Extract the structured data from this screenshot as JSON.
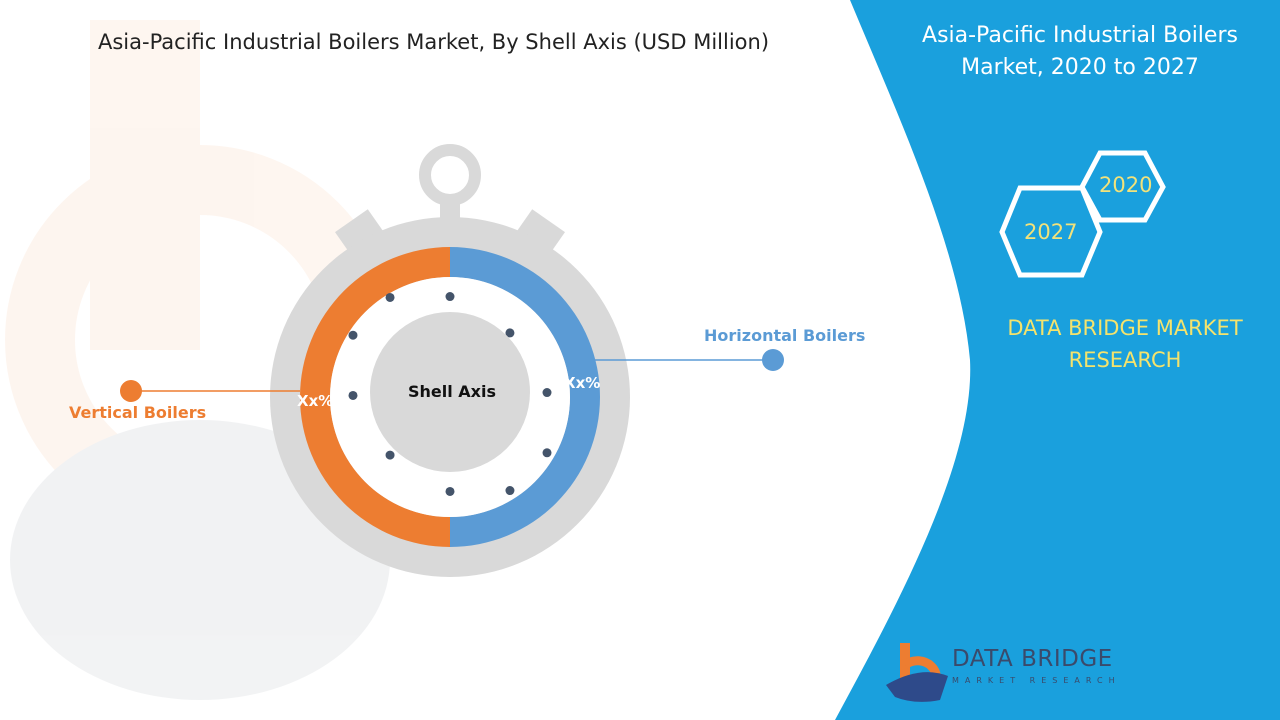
{
  "title": "Asia-Pacific Industrial Boilers Market, By Shell Axis (USD Million)",
  "right_panel": {
    "title": "Asia-Pacific Industrial Boilers Market, 2020 to 2027",
    "year_start": "2020",
    "year_end": "2027",
    "brand": "DATA BRIDGE MARKET RESEARCH",
    "logo_line1": "DATA BRIDGE",
    "logo_line2": "MARKET RESEARCH"
  },
  "diagram": {
    "center_label": "Shell Axis",
    "segments": [
      {
        "label": "Vertical Boilers",
        "value_text": "Xx%",
        "color": "#ed7d31"
      },
      {
        "label": "Horizontal Boilers",
        "value_text": "Xx%",
        "color": "#5b9bd5"
      }
    ]
  },
  "colors": {
    "panel": "#1aa0dd",
    "watch": "#d9d9d9",
    "dots": "#44546a"
  }
}
